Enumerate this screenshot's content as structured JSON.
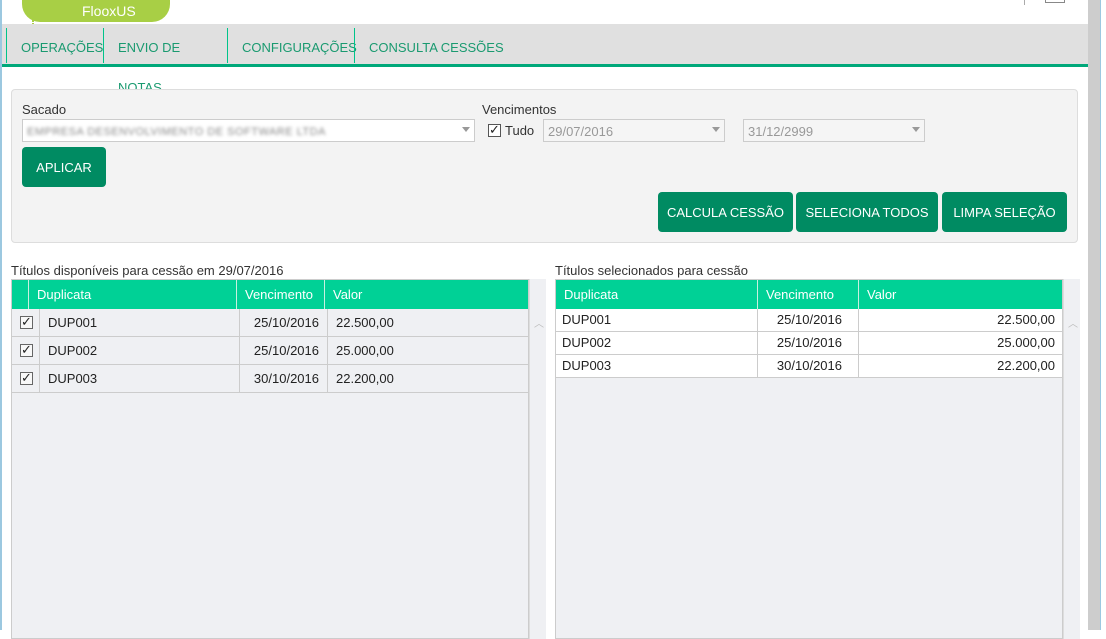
{
  "app": {
    "logo_text": "FlooxUS"
  },
  "nav": {
    "items": [
      {
        "label": "OPERAÇÕES"
      },
      {
        "label": "ENVIO DE NOTAS"
      },
      {
        "label": "CONFIGURAÇÕES"
      },
      {
        "label": "CONSULTA CESSÕES"
      }
    ]
  },
  "filter": {
    "sacado_label": "Sacado",
    "sacado_value": "EMPRESA DESENVOLVIMENTO DE SOFTWARE LTDA",
    "vencimentos_label": "Vencimentos",
    "tudo_label": "Tudo",
    "tudo_checked": true,
    "date_from": "29/07/2016",
    "date_to": "31/12/2999",
    "aplicar": "APLICAR",
    "calcula": "CALCULA CESSÃO",
    "seleciona": "SELECIONA TODOS",
    "limpa": "LIMPA SELEÇÃO"
  },
  "available": {
    "title": "Títulos disponíveis para cessão em 29/07/2016",
    "columns": [
      "Duplicata",
      "Vencimento",
      "Valor"
    ],
    "rows": [
      {
        "checked": true,
        "dup": "DUP001",
        "venc": "25/10/2016",
        "valor": "22.500,00"
      },
      {
        "checked": true,
        "dup": "DUP002",
        "venc": "25/10/2016",
        "valor": "25.000,00"
      },
      {
        "checked": true,
        "dup": "DUP003",
        "venc": "30/10/2016",
        "valor": "22.200,00"
      }
    ]
  },
  "selected": {
    "title": "Títulos selecionados para cessão",
    "columns": [
      "Duplicata",
      "Vencimento",
      "Valor"
    ],
    "rows": [
      {
        "dup": "DUP001",
        "venc": "25/10/2016",
        "valor": "22.500,00"
      },
      {
        "dup": "DUP002",
        "venc": "25/10/2016",
        "valor": "25.000,00"
      },
      {
        "dup": "DUP003",
        "venc": "30/10/2016",
        "valor": "22.200,00"
      }
    ]
  },
  "colors": {
    "accent": "#00d196",
    "button": "#008b62",
    "logo": "#a8cf45"
  }
}
